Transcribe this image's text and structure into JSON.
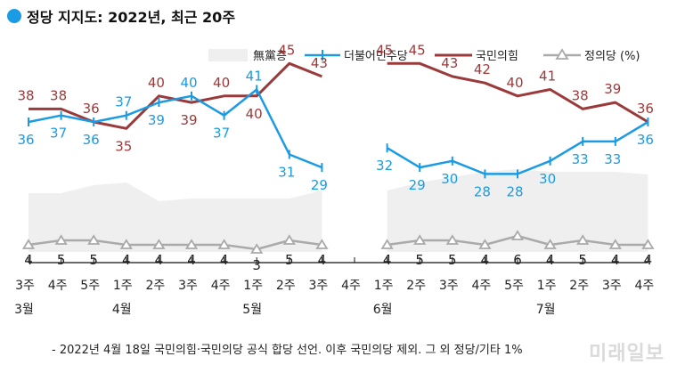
{
  "title": "정당 지지도: 2022년, 최근 20주",
  "footnote": "- 2022년 4월 18일 국민의힘·국민의당 공식 합당 선언. 이후 국민의당 제외. 그 외 정당/기타 1%",
  "watermark": "미래일보",
  "colors": {
    "accent": "#1a9be4",
    "democratic": "#1a9be4",
    "ppp": "#9b3a3a",
    "justice": "#aaaaaa",
    "nonpartisan": "#efefef"
  },
  "chart_data": {
    "type": "line",
    "x_labels": [
      "3주",
      "4주",
      "5주",
      "1주",
      "2주",
      "3주",
      "4주",
      "1주",
      "2주",
      "3주",
      "4주",
      "1주",
      "2주",
      "3주",
      "4주",
      "5주",
      "1주",
      "2주",
      "3주",
      "4주"
    ],
    "month_labels": [
      {
        "label": "3월",
        "index": 0
      },
      {
        "label": "4월",
        "index": 3
      },
      {
        "label": "5월",
        "index": 7
      },
      {
        "label": "6월",
        "index": 11
      },
      {
        "label": "7월",
        "index": 16
      }
    ],
    "legend": [
      "無黨층",
      "더불어민주당",
      "국민의힘",
      "정의당 (%)"
    ],
    "series": [
      {
        "name": "無黨층",
        "type": "area",
        "values": [
          22,
          22,
          25,
          26,
          19,
          20,
          20,
          20,
          20,
          23,
          null,
          23,
          26,
          28,
          30,
          31,
          30,
          30,
          30,
          29
        ]
      },
      {
        "name": "더불어민주당",
        "values": [
          36,
          37,
          36,
          37,
          39,
          40,
          37,
          41,
          31,
          29,
          null,
          32,
          29,
          30,
          28,
          28,
          30,
          33,
          33,
          36
        ]
      },
      {
        "name": "국민의힘",
        "values": [
          38,
          38,
          36,
          35,
          40,
          39,
          40,
          40,
          45,
          43,
          null,
          45,
          45,
          43,
          42,
          40,
          41,
          38,
          39,
          36
        ]
      },
      {
        "name": "정의당 (%)",
        "values": [
          4,
          5,
          5,
          4,
          4,
          4,
          4,
          3,
          5,
          4,
          null,
          4,
          5,
          5,
          4,
          6,
          4,
          5,
          4,
          4
        ]
      }
    ]
  }
}
